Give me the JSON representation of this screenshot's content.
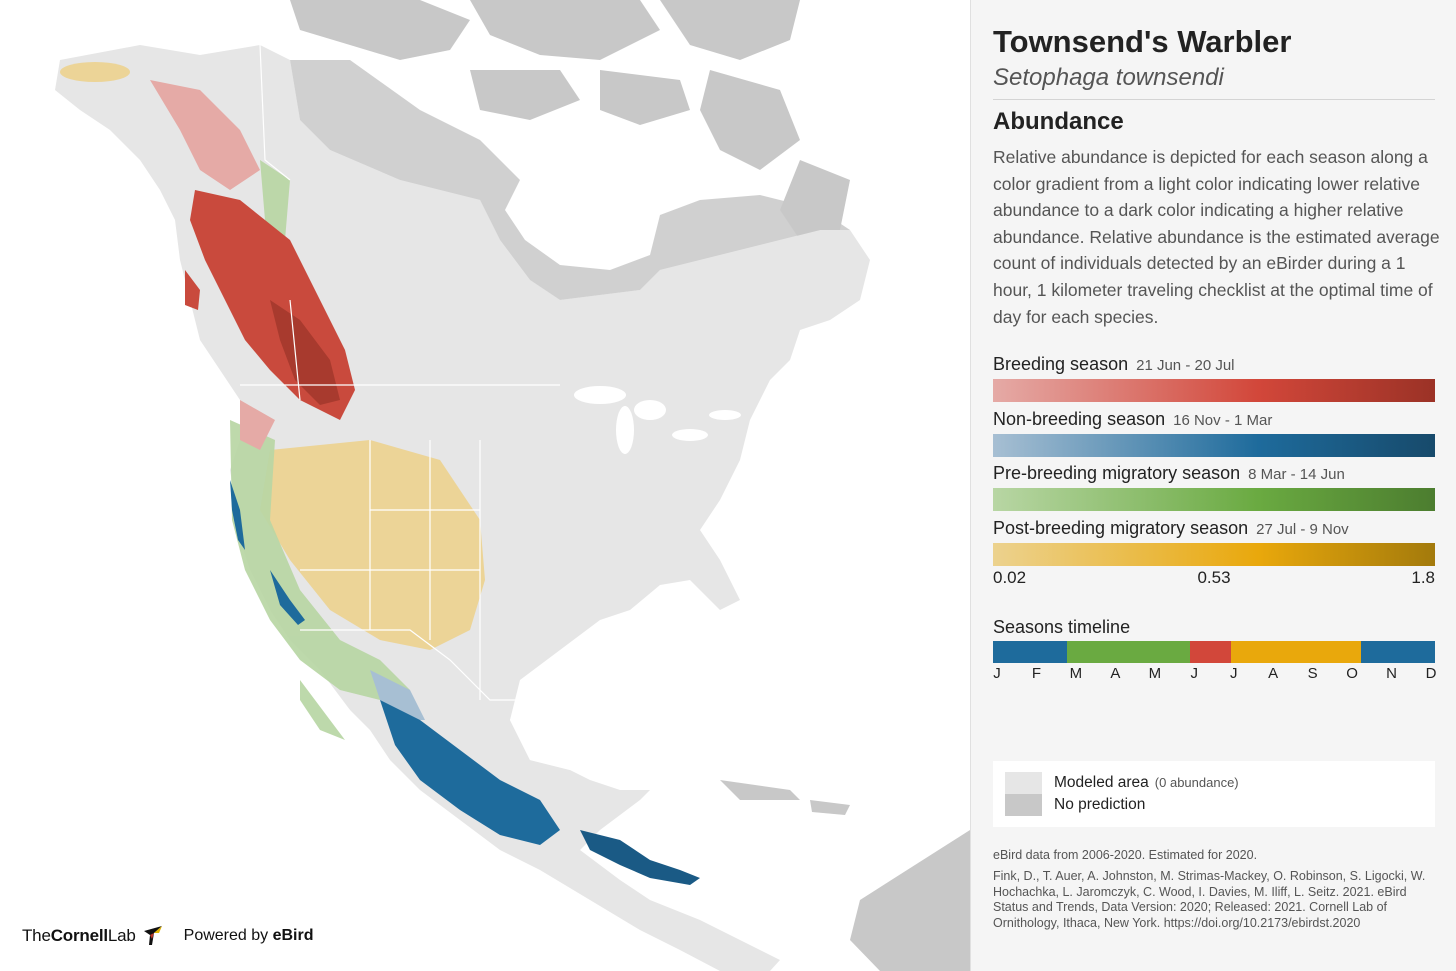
{
  "header": {
    "common_name": "Townsend's Warbler",
    "scientific_name": "Setophaga townsendi"
  },
  "abundance": {
    "title": "Abundance",
    "description": "Relative abundance is depicted for each season along a color gradient from a light color indicating lower relative abundance to a dark color indicating a higher relative abundance. Relative abundance is the estimated average count of individuals detected by an eBirder during a 1 hour, 1 kilometer traveling checklist at the optimal time of day for each species."
  },
  "seasons": [
    {
      "label": "Breeding season",
      "dates": "21 Jun - 20 Jul",
      "color_light": "#e5aaa6",
      "color_mid": "#d2473a",
      "color_dark": "#9b3226"
    },
    {
      "label": "Non-breeding season",
      "dates": "16 Nov - 1 Mar",
      "color_light": "#a7bfd3",
      "color_mid": "#1e6b9c",
      "color_dark": "#174a6b"
    },
    {
      "label": "Pre-breeding migratory season",
      "dates": "8 Mar - 14 Jun",
      "color_light": "#b8d6a4",
      "color_mid": "#6aaa41",
      "color_dark": "#4c7d2f"
    },
    {
      "label": "Post-breeding migratory season",
      "dates": "27 Jul - 9 Nov",
      "color_light": "#ecd28e",
      "color_mid": "#e9a80c",
      "color_dark": "#a37a0c"
    }
  ],
  "scale": {
    "min": "0.02",
    "mid": "0.53",
    "max": "1.8"
  },
  "timeline": {
    "title": "Seasons timeline",
    "months": [
      "J",
      "F",
      "M",
      "A",
      "M",
      "J",
      "J",
      "A",
      "S",
      "O",
      "N",
      "D"
    ],
    "segments": [
      {
        "season": "Non-breeding season",
        "start_month": 0,
        "end_month": 2.0,
        "color": "#1e6b9c"
      },
      {
        "season": "Pre-breeding migratory season",
        "start_month": 2.0,
        "end_month": 5.35,
        "color": "#6aaa41"
      },
      {
        "season": "Breeding season",
        "start_month": 5.35,
        "end_month": 6.45,
        "color": "#d2473a"
      },
      {
        "season": "Post-breeding migratory season",
        "start_month": 6.45,
        "end_month": 10.0,
        "color": "#e9a80c"
      },
      {
        "season": "Non-breeding season",
        "start_month": 10.0,
        "end_month": 12,
        "color": "#1e6b9c"
      }
    ]
  },
  "legend": {
    "modeled_area": "Modeled area",
    "modeled_area_note": "(0 abundance)",
    "no_prediction": "No prediction",
    "modeled_color": "#e6e6e6",
    "no_prediction_color": "#c8c8c8"
  },
  "footer": {
    "data_note": "eBird data from 2006-2020. Estimated for 2020.",
    "citation": "Fink, D., T. Auer, A. Johnston, M. Strimas-Mackey, O. Robinson, S. Ligocki, W. Hochachka, L. Jaromczyk, C. Wood, I. Davies, M. Iliff, L. Seitz. 2021. eBird Status and Trends, Data Version: 2020; Released: 2021. Cornell Lab of Ornithology, Ithaca, New York. https://doi.org/10.2173/ebirdst.2020",
    "logo_the": "The",
    "logo_cornell": "Cornell",
    "logo_lab": "Lab",
    "powered_by": "Powered by",
    "powered_brand": "eBird"
  },
  "map": {
    "land_color": "#e6e6e6",
    "no_prediction_color": "#c8c8c8",
    "water_color": "#ffffff",
    "border_color": "#ffffff",
    "icons": [
      "cornell-lab-bird-icon"
    ]
  }
}
